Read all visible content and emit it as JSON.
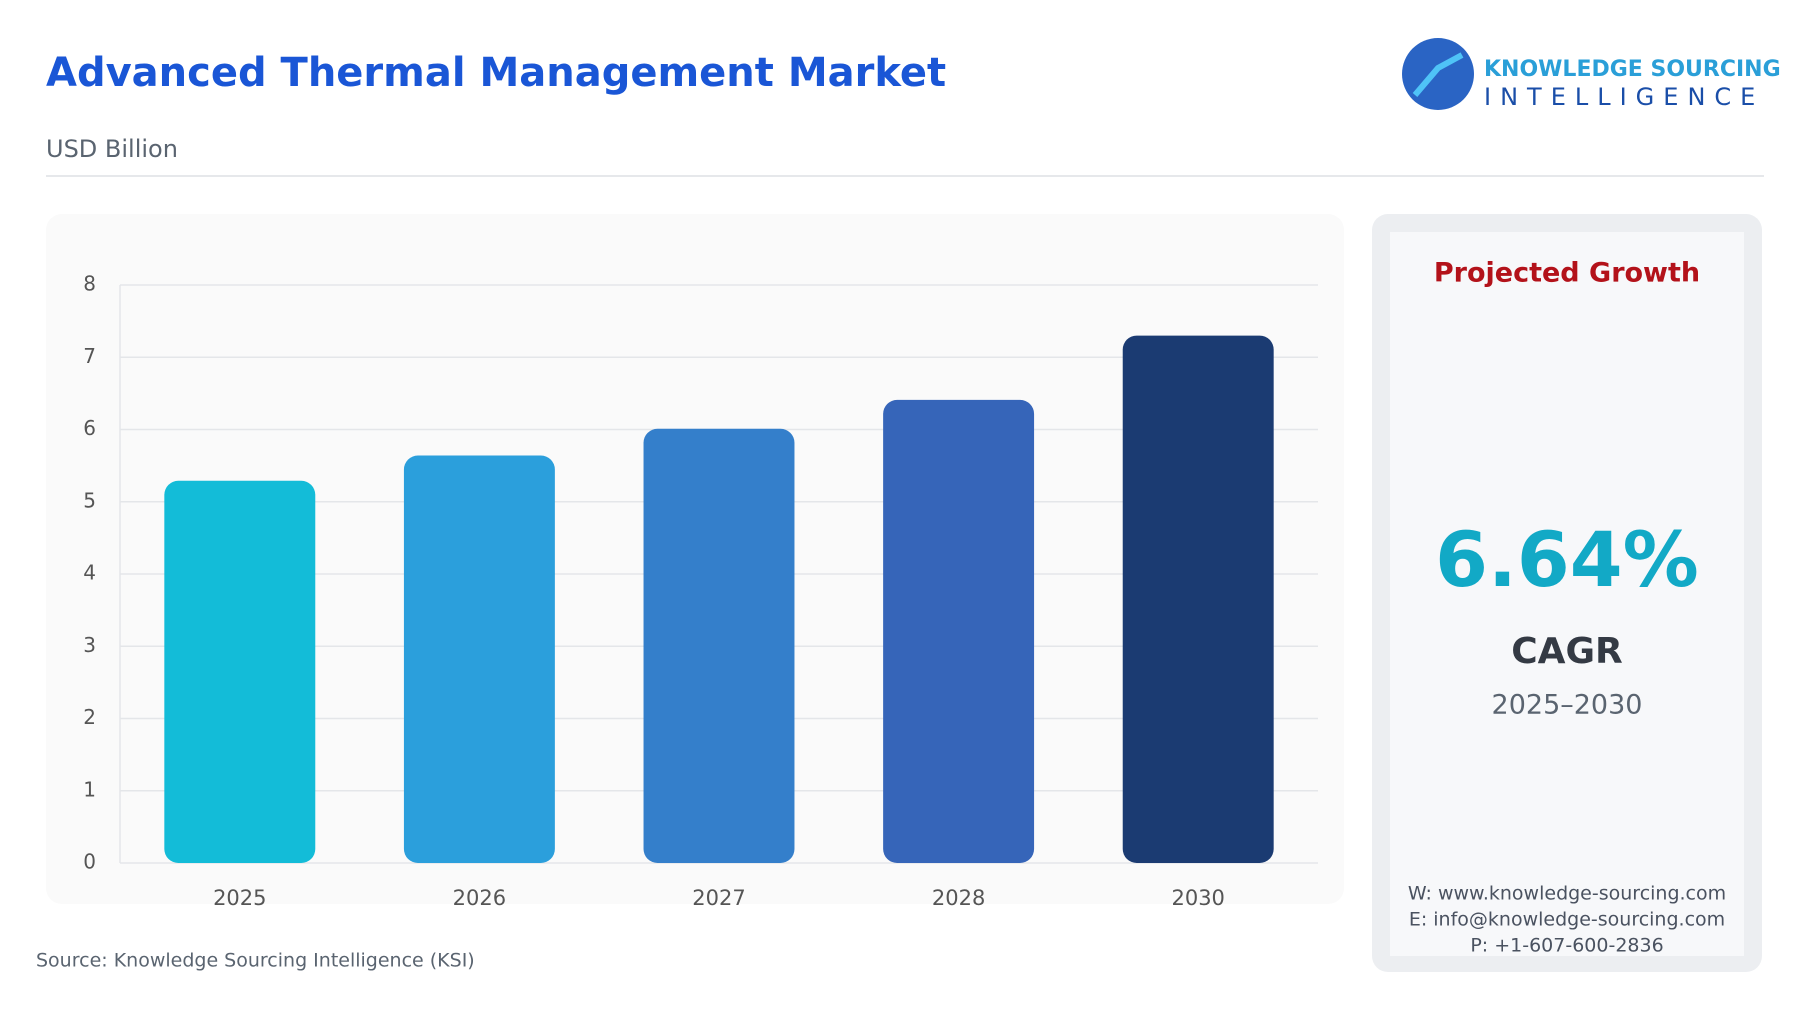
{
  "header": {
    "title": "Advanced Thermal Management Market",
    "subtitle": "USD Billion",
    "logo_line1": "KNOWLEDGE SOURCING",
    "logo_line2": "INTELLIGENCE"
  },
  "chart_data": {
    "type": "bar",
    "categories": [
      "2025",
      "2026",
      "2027",
      "2028",
      "2030"
    ],
    "values": [
      5.29,
      5.64,
      6.01,
      6.41,
      7.3
    ],
    "colors": [
      "#13bcd8",
      "#2b9fdc",
      "#347fcb",
      "#3665b9",
      "#1b3b72"
    ],
    "ylim": [
      0,
      8
    ],
    "yticks": [
      0,
      1,
      2,
      3,
      4,
      5,
      6,
      7,
      8
    ],
    "grid": true
  },
  "panel": {
    "heading": "Projected Growth",
    "cagr_value": "6.64%",
    "cagr_label": "CAGR",
    "period": "2025–2030",
    "website": "W: www.knowledge-sourcing.com",
    "email": "E: info@knowledge-sourcing.com",
    "phone": "P: +1-607-600-2836"
  },
  "footer": {
    "source": "Source: Knowledge Sourcing Intelligence (KSI)"
  }
}
